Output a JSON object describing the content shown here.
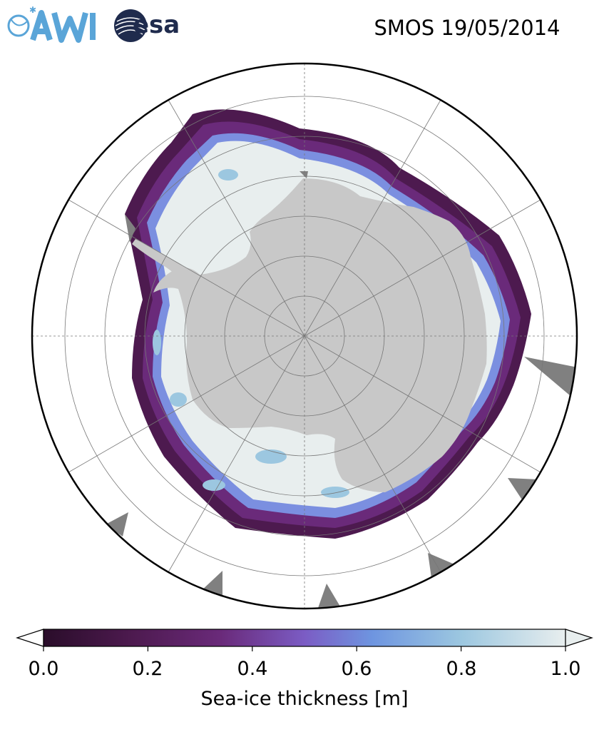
{
  "header": {
    "title": "SMOS 19/05/2014",
    "logos": [
      {
        "name": "AWI",
        "icon": "awi-logo",
        "color": "#5aa5d8"
      },
      {
        "name": "esa",
        "icon": "esa-logo",
        "color": "#1f2b4d"
      }
    ]
  },
  "map": {
    "projection": "south-polar-stereographic",
    "region": "Antarctica",
    "colors": {
      "land": "#c8c8c8",
      "no_data": "#808080",
      "ocean": "#ffffff",
      "boundary": "#000000",
      "grid": "#777777"
    }
  },
  "colorbar": {
    "label": "Sea-ice thickness [m]",
    "min": 0.0,
    "max": 1.0,
    "ticks": [
      "0.0",
      "0.2",
      "0.4",
      "0.6",
      "0.8",
      "1.0"
    ],
    "extend": "both",
    "colormap": [
      "#2a0d2a",
      "#4d1a4f",
      "#6a2a7a",
      "#7b5cc4",
      "#6e95e0",
      "#9cc7e0",
      "#e8eeee"
    ]
  }
}
